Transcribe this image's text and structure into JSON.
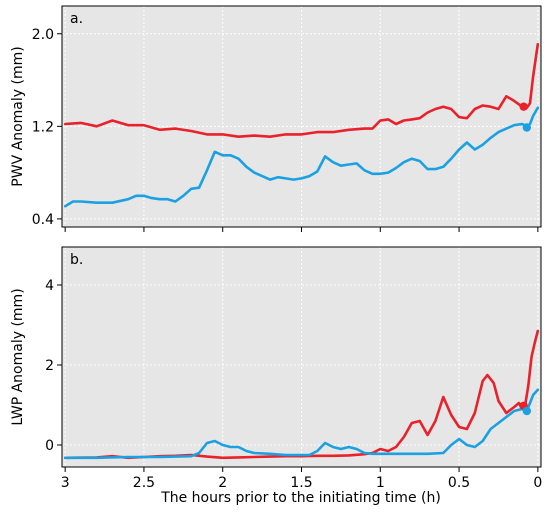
{
  "chart_data": [
    {
      "type": "line",
      "panel_label": "a.",
      "xlabel": "",
      "ylabel": "PWV Anomaly (mm)",
      "xlim": [
        3.02,
        -0.02
      ],
      "ylim": [
        0.33,
        2.24
      ],
      "x_reversed": true,
      "grid": true,
      "xticks": [
        3,
        2.5,
        2,
        1.5,
        1,
        0.5,
        0
      ],
      "xtick_labels": [],
      "yticks": [
        0.4,
        1.2,
        2.0
      ],
      "ytick_labels": [
        "0.4",
        "1.2",
        "2.0"
      ],
      "series": [
        {
          "color": "#e8212b",
          "x": [
            3.0,
            2.9,
            2.8,
            2.7,
            2.6,
            2.5,
            2.4,
            2.3,
            2.2,
            2.1,
            2.0,
            1.9,
            1.8,
            1.7,
            1.6,
            1.5,
            1.4,
            1.3,
            1.2,
            1.1,
            1.05,
            1.0,
            0.95,
            0.9,
            0.85,
            0.8,
            0.75,
            0.7,
            0.65,
            0.6,
            0.55,
            0.5,
            0.45,
            0.4,
            0.35,
            0.3,
            0.25,
            0.2,
            0.15,
            0.1,
            0.07,
            0.05,
            0.03,
            0.0
          ],
          "y": [
            1.22,
            1.23,
            1.2,
            1.25,
            1.21,
            1.21,
            1.17,
            1.18,
            1.16,
            1.13,
            1.13,
            1.11,
            1.12,
            1.11,
            1.13,
            1.13,
            1.15,
            1.15,
            1.17,
            1.18,
            1.18,
            1.25,
            1.26,
            1.22,
            1.25,
            1.26,
            1.27,
            1.32,
            1.35,
            1.37,
            1.35,
            1.28,
            1.27,
            1.35,
            1.38,
            1.37,
            1.35,
            1.46,
            1.42,
            1.37,
            1.36,
            1.4,
            1.63,
            1.91
          ],
          "marker": {
            "x": 0.09,
            "y": 1.37
          }
        },
        {
          "color": "#1ba1e2",
          "x": [
            3.0,
            2.95,
            2.9,
            2.8,
            2.7,
            2.6,
            2.55,
            2.5,
            2.45,
            2.4,
            2.35,
            2.3,
            2.25,
            2.2,
            2.15,
            2.1,
            2.05,
            2.0,
            1.95,
            1.9,
            1.85,
            1.8,
            1.75,
            1.7,
            1.65,
            1.6,
            1.55,
            1.5,
            1.45,
            1.4,
            1.35,
            1.3,
            1.25,
            1.2,
            1.15,
            1.1,
            1.05,
            1.0,
            0.95,
            0.9,
            0.85,
            0.8,
            0.75,
            0.7,
            0.65,
            0.6,
            0.55,
            0.5,
            0.45,
            0.4,
            0.35,
            0.3,
            0.25,
            0.2,
            0.15,
            0.1,
            0.07,
            0.05,
            0.03,
            0.0
          ],
          "y": [
            0.51,
            0.55,
            0.55,
            0.54,
            0.54,
            0.57,
            0.6,
            0.6,
            0.58,
            0.57,
            0.57,
            0.55,
            0.6,
            0.66,
            0.67,
            0.82,
            0.98,
            0.95,
            0.95,
            0.92,
            0.85,
            0.8,
            0.77,
            0.74,
            0.76,
            0.75,
            0.74,
            0.75,
            0.77,
            0.81,
            0.94,
            0.89,
            0.86,
            0.87,
            0.88,
            0.82,
            0.79,
            0.79,
            0.8,
            0.84,
            0.89,
            0.92,
            0.9,
            0.83,
            0.83,
            0.85,
            0.92,
            1.0,
            1.06,
            1.0,
            1.04,
            1.1,
            1.15,
            1.18,
            1.21,
            1.22,
            1.2,
            1.22,
            1.29,
            1.36
          ],
          "marker": {
            "x": 0.07,
            "y": 1.19
          }
        }
      ]
    },
    {
      "type": "line",
      "panel_label": "b.",
      "xlabel": "The  hours prior to the initiating time (h)",
      "ylabel": "LWP Anomaly (mm)",
      "xlim": [
        3.02,
        -0.02
      ],
      "ylim": [
        -0.55,
        4.95
      ],
      "x_reversed": true,
      "grid": true,
      "xticks": [
        3,
        2.5,
        2,
        1.5,
        1,
        0.5,
        0
      ],
      "xtick_labels": [
        "3",
        "2.5",
        "2",
        "1.5",
        "1",
        "0.5",
        "0"
      ],
      "yticks": [
        0,
        2,
        4
      ],
      "ytick_labels": [
        "0",
        "2",
        "4"
      ],
      "series": [
        {
          "color": "#e8212b",
          "x": [
            3.0,
            2.8,
            2.7,
            2.6,
            2.5,
            2.4,
            2.3,
            2.2,
            2.1,
            2.0,
            1.9,
            1.8,
            1.7,
            1.6,
            1.5,
            1.4,
            1.3,
            1.2,
            1.1,
            1.05,
            1.0,
            0.95,
            0.9,
            0.85,
            0.8,
            0.75,
            0.7,
            0.65,
            0.6,
            0.55,
            0.5,
            0.45,
            0.4,
            0.35,
            0.32,
            0.28,
            0.25,
            0.2,
            0.15,
            0.12,
            0.1,
            0.08,
            0.06,
            0.04,
            0.02,
            0.0
          ],
          "y": [
            -0.32,
            -0.31,
            -0.28,
            -0.32,
            -0.3,
            -0.28,
            -0.27,
            -0.25,
            -0.29,
            -0.32,
            -0.31,
            -0.3,
            -0.29,
            -0.28,
            -0.28,
            -0.27,
            -0.27,
            -0.26,
            -0.23,
            -0.2,
            -0.1,
            -0.15,
            -0.05,
            0.2,
            0.55,
            0.6,
            0.25,
            0.6,
            1.2,
            0.75,
            0.45,
            0.4,
            0.8,
            1.6,
            1.75,
            1.55,
            1.1,
            0.8,
            0.95,
            1.05,
            0.9,
            1.0,
            1.5,
            2.2,
            2.55,
            2.85
          ],
          "marker": {
            "x": 0.09,
            "y": 0.98
          }
        },
        {
          "color": "#1ba1e2",
          "x": [
            3.0,
            2.8,
            2.6,
            2.4,
            2.2,
            2.15,
            2.1,
            2.05,
            2.0,
            1.95,
            1.9,
            1.85,
            1.8,
            1.7,
            1.6,
            1.5,
            1.45,
            1.4,
            1.35,
            1.3,
            1.25,
            1.2,
            1.15,
            1.1,
            1.05,
            1.0,
            0.9,
            0.8,
            0.7,
            0.6,
            0.55,
            0.5,
            0.45,
            0.4,
            0.35,
            0.3,
            0.25,
            0.2,
            0.15,
            0.1,
            0.07,
            0.05,
            0.03,
            0.0
          ],
          "y": [
            -0.32,
            -0.32,
            -0.3,
            -0.3,
            -0.28,
            -0.2,
            0.05,
            0.1,
            0.0,
            -0.05,
            -0.05,
            -0.15,
            -0.2,
            -0.22,
            -0.25,
            -0.25,
            -0.25,
            -0.15,
            0.05,
            -0.05,
            -0.1,
            -0.05,
            -0.1,
            -0.2,
            -0.22,
            -0.22,
            -0.22,
            -0.22,
            -0.22,
            -0.2,
            0.0,
            0.15,
            0.0,
            -0.05,
            0.1,
            0.4,
            0.55,
            0.7,
            0.85,
            0.9,
            0.85,
            1.05,
            1.25,
            1.38
          ],
          "marker": {
            "x": 0.07,
            "y": 0.85
          }
        }
      ]
    }
  ]
}
